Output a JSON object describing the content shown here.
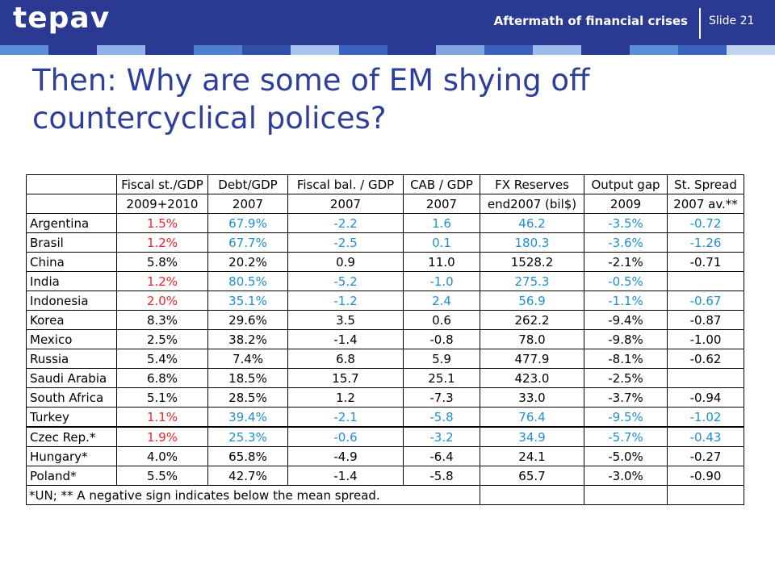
{
  "header": {
    "logo": "tepav",
    "title": "Aftermath of financial crises",
    "slide": "Slide 21",
    "stripe_colors": [
      "#5b8ed6",
      "#2a3a92",
      "#8fb3e8",
      "#2a3a92",
      "#4f7fd0",
      "#2f50a8",
      "#a8c4ee",
      "#3864bf",
      "#2a3a92",
      "#7fa6e2",
      "#3a5fb8",
      "#9dbbea",
      "#2a3a92",
      "#5b8ed6",
      "#3864bf",
      "#c0d4f2"
    ]
  },
  "slide_title": "Then: Why are some of EM shying off countercyclical polices?",
  "colors": {
    "red": "#e8262b",
    "blue": "#1e8fd0",
    "title": "#2d3f9a",
    "header_bg": "#2a3a92"
  },
  "table": {
    "headers": [
      "",
      "Fiscal st./GDP",
      "Debt/GDP",
      "Fiscal bal. / GDP",
      "CAB / GDP",
      "FX Reserves",
      "Output gap",
      "St. Spread"
    ],
    "subheaders": [
      "",
      "2009+2010",
      "2007",
      "2007",
      "2007",
      "end2007 (bil$)",
      "2009",
      "2007 av.**"
    ],
    "rows": [
      {
        "country": "Argentina",
        "fiscal": "1.5%",
        "debt": "67.9%",
        "bal": "-2.2",
        "cab": "1.6",
        "fx": "46.2",
        "gap": "-3.5%",
        "spread": "-0.72"
      },
      {
        "country": "Brasil",
        "fiscal": "1.2%",
        "debt": "67.7%",
        "bal": "-2.5",
        "cab": "0.1",
        "fx": "180.3",
        "gap": "-3.6%",
        "spread": "-1.26"
      },
      {
        "country": "China",
        "fiscal": "5.8%",
        "debt": "20.2%",
        "bal": "0.9",
        "cab": "11.0",
        "fx": "1528.2",
        "gap": "-2.1%",
        "spread": "-0.71"
      },
      {
        "country": "India",
        "fiscal": "1.2%",
        "debt": "80.5%",
        "bal": "-5.2",
        "cab": "-1.0",
        "fx": "275.3",
        "gap": "-0.5%",
        "spread": ""
      },
      {
        "country": "Indonesia",
        "fiscal": "2.0%",
        "debt": "35.1%",
        "bal": "-1.2",
        "cab": "2.4",
        "fx": "56.9",
        "gap": "-1.1%",
        "spread": "-0.67"
      },
      {
        "country": "Korea",
        "fiscal": "8.3%",
        "debt": "29.6%",
        "bal": "3.5",
        "cab": "0.6",
        "fx": "262.2",
        "gap": "-9.4%",
        "spread": "-0.87"
      },
      {
        "country": "Mexico",
        "fiscal": "2.5%",
        "debt": "38.2%",
        "bal": "-1.4",
        "cab": "-0.8",
        "fx": "78.0",
        "gap": "-9.8%",
        "spread": "-1.00"
      },
      {
        "country": "Russia",
        "fiscal": "5.4%",
        "debt": "7.4%",
        "bal": "6.8",
        "cab": "5.9",
        "fx": "477.9",
        "gap": "-8.1%",
        "spread": "-0.62"
      },
      {
        "country": "Saudi Arabia",
        "fiscal": "6.8%",
        "debt": "18.5%",
        "bal": "15.7",
        "cab": "25.1",
        "fx": "423.0",
        "gap": "-2.5%",
        "spread": ""
      },
      {
        "country": "South Africa",
        "fiscal": "5.1%",
        "debt": "28.5%",
        "bal": "1.2",
        "cab": "-7.3",
        "fx": "33.0",
        "gap": "-3.7%",
        "spread": "-0.94"
      },
      {
        "country": "Turkey",
        "fiscal": "1.1%",
        "debt": "39.4%",
        "bal": "-2.1",
        "cab": "-5.8",
        "fx": "76.4",
        "gap": "-9.5%",
        "spread": "-1.02"
      },
      {
        "country": "Czec Rep.*",
        "fiscal": "1.9%",
        "debt": "25.3%",
        "bal": "-0.6",
        "cab": "-3.2",
        "fx": "34.9",
        "gap": "-5.7%",
        "spread": "-0.43"
      },
      {
        "country": "Hungary*",
        "fiscal": "4.0%",
        "debt": "65.8%",
        "bal": "-4.9",
        "cab": "-6.4",
        "fx": "24.1",
        "gap": "-5.0%",
        "spread": "-0.27"
      },
      {
        "country": "Poland*",
        "fiscal": "5.5%",
        "debt": "42.7%",
        "bal": "-1.4",
        "cab": "-5.8",
        "fx": "65.7",
        "gap": "-3.0%",
        "spread": "-0.90"
      }
    ],
    "footnote": "*UN; ** A negative sign indicates below the mean spread."
  }
}
